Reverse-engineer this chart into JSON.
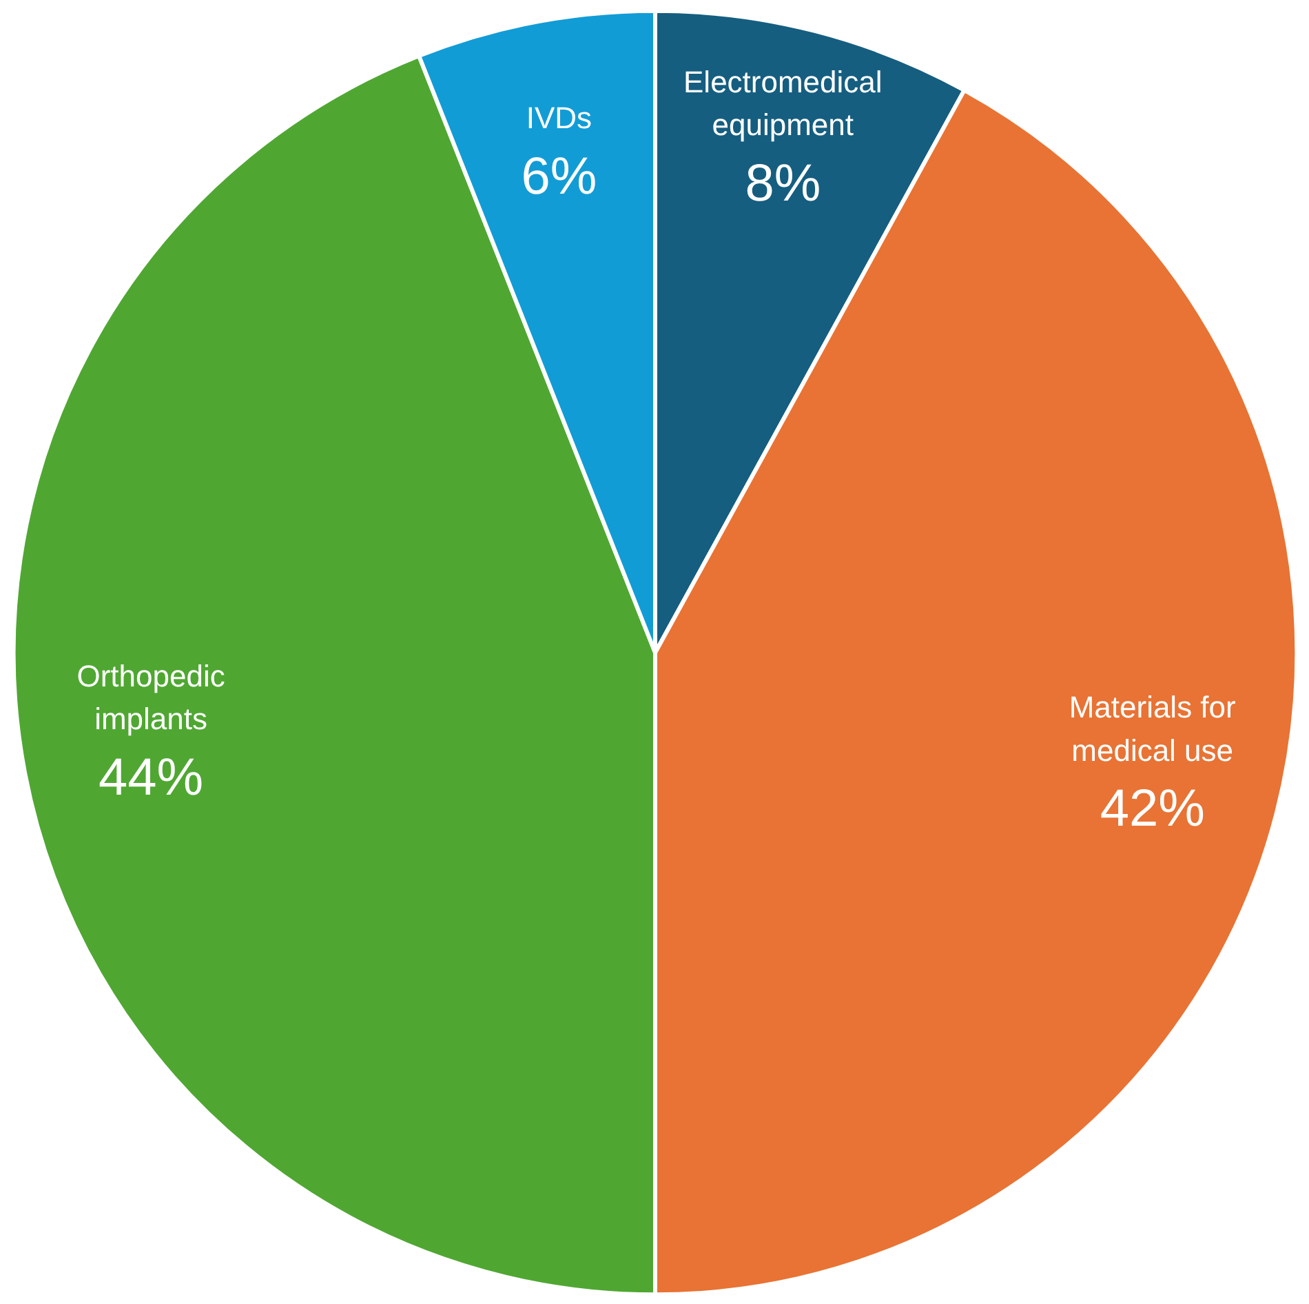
{
  "chart_data": {
    "type": "pie",
    "categories": [
      "Electromedical equipment",
      "Materials for medical use",
      "Orthopedic implants",
      "IVDs"
    ],
    "values": [
      8,
      42,
      44,
      6
    ],
    "colors": [
      "#155e80",
      "#e87334",
      "#4fa732",
      "#129cd6"
    ],
    "value_labels": [
      "8%",
      "42%",
      "44%",
      "6%"
    ]
  }
}
